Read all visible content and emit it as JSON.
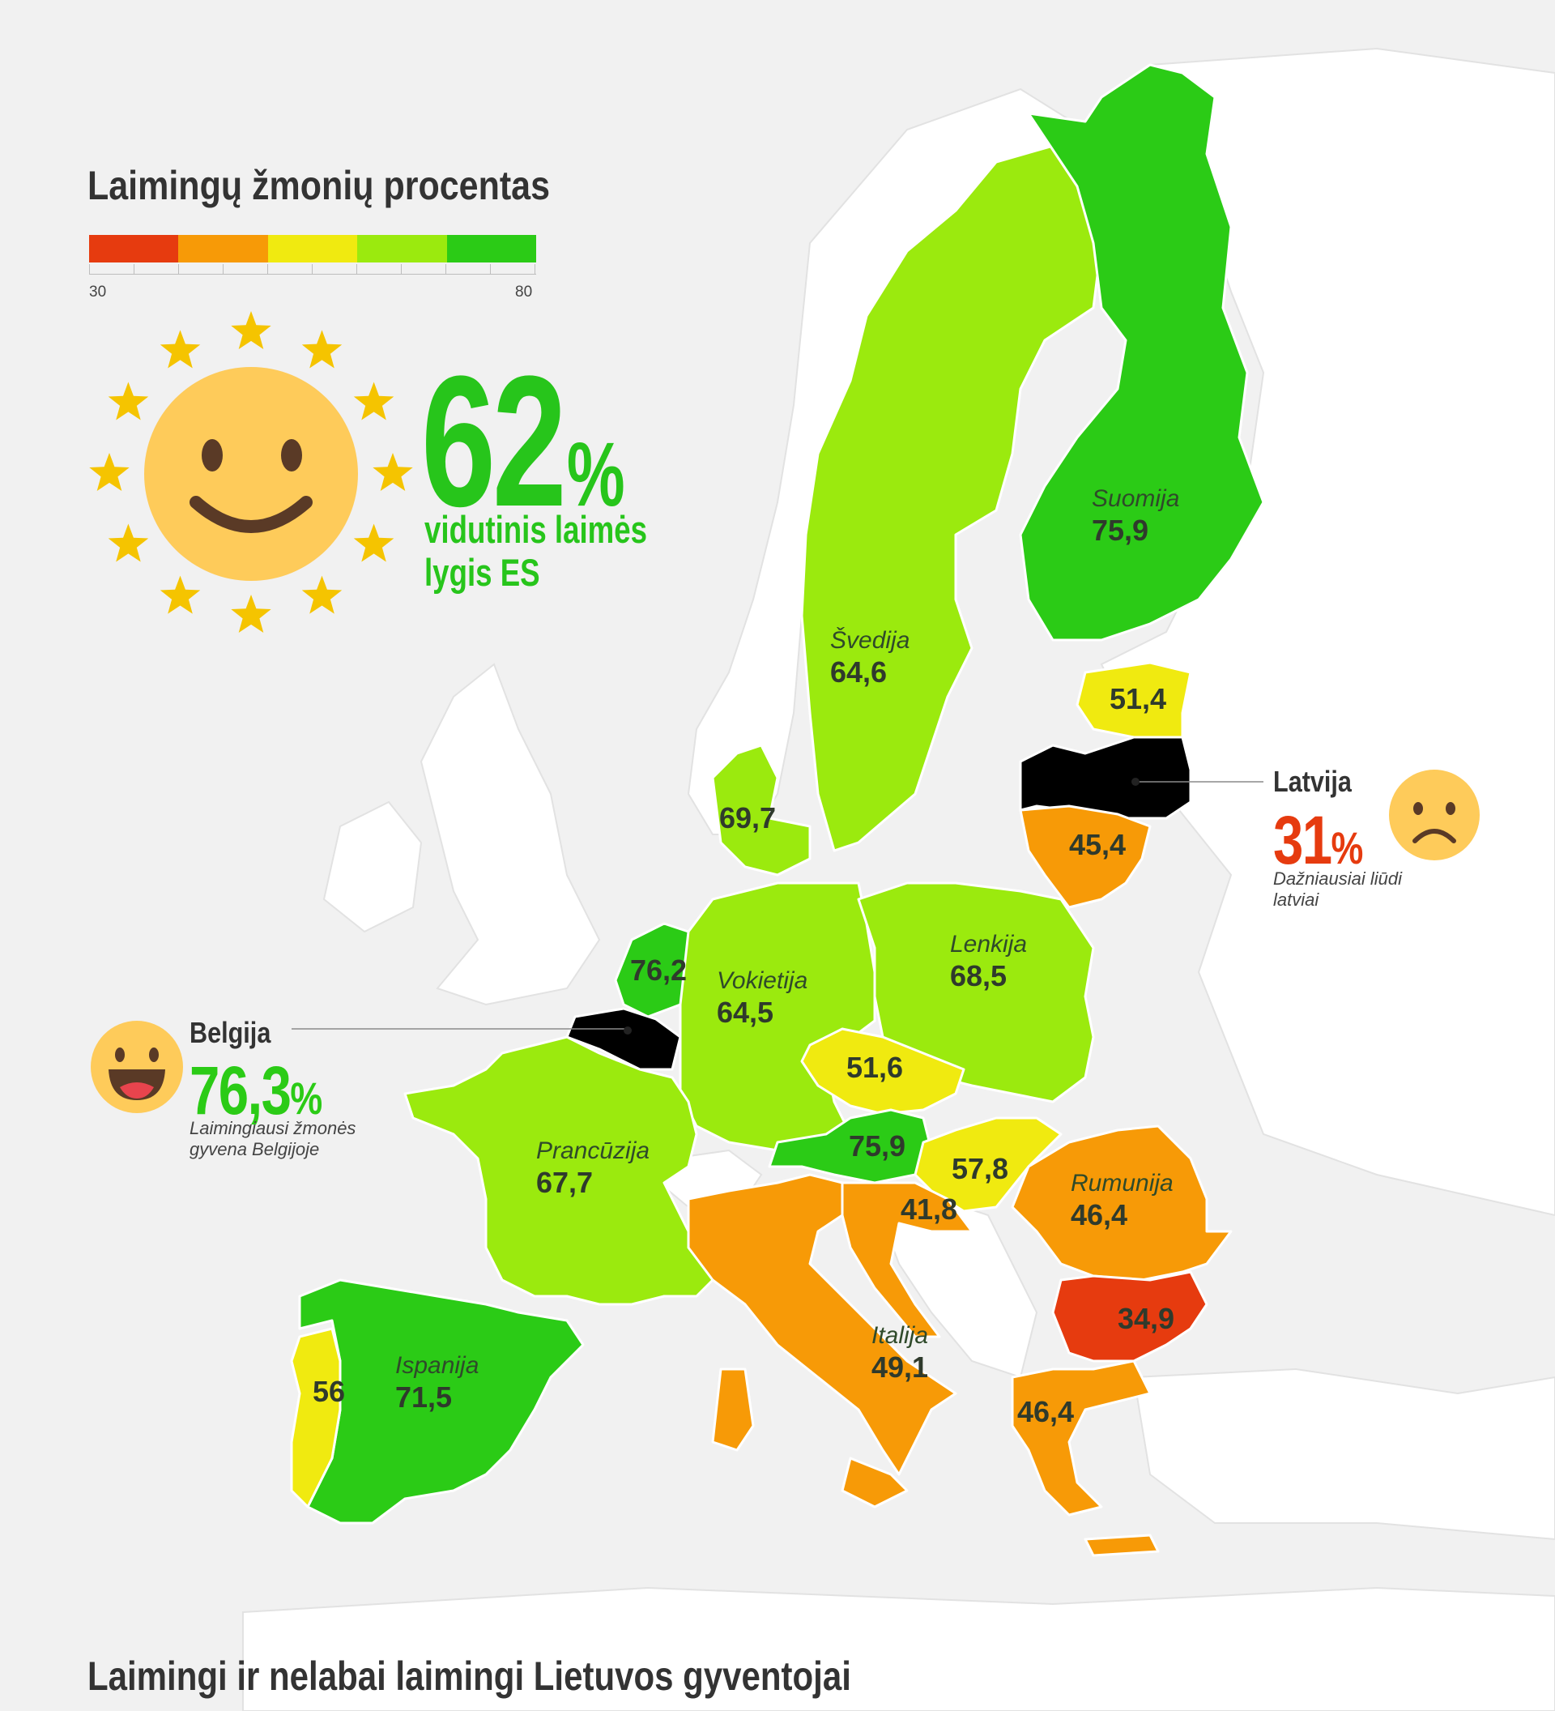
{
  "legend": {
    "title": "Laimingų žmonių procentas",
    "min": "30",
    "max": "80",
    "colors": [
      "#e63b0f",
      "#f79a07",
      "#f0ea10",
      "#9bea0e",
      "#2bcb16"
    ]
  },
  "eu_average": {
    "value": "62",
    "unit": "%",
    "label_line1": "vidutinis laimės",
    "label_line2": "lygis ES",
    "icon": "smiling-sun-icon"
  },
  "callouts": {
    "latvia": {
      "name": "Latvija",
      "value": "31",
      "unit": "%",
      "desc_line1": "Dažniausiai liūdi",
      "desc_line2": "latviai",
      "color": "#e63b0f",
      "icon": "sad-face-icon"
    },
    "belgium": {
      "name": "Belgija",
      "value": "76,3",
      "unit": "%",
      "desc_line1": "Laimingiausi žmonės",
      "desc_line2": "gyvena Belgijoje",
      "color": "#2bcb16",
      "icon": "laughing-face-icon"
    }
  },
  "countries": [
    {
      "name": "Suomija",
      "value": "75,9",
      "color": "#2bcb16"
    },
    {
      "name": "Švedija",
      "value": "64,6",
      "color": "#9bea0e"
    },
    {
      "name": "",
      "value": "51,4",
      "color": "#f0ea10"
    },
    {
      "name": "",
      "value": "45,4",
      "color": "#f79a07"
    },
    {
      "name": "",
      "value": "69,7",
      "color": "#9bea0e"
    },
    {
      "name": "",
      "value": "76,2",
      "color": "#2bcb16"
    },
    {
      "name": "Vokietija",
      "value": "64,5",
      "color": "#9bea0e"
    },
    {
      "name": "Lenkija",
      "value": "68,5",
      "color": "#9bea0e"
    },
    {
      "name": "",
      "value": "51,6",
      "color": "#f0ea10"
    },
    {
      "name": "",
      "value": "75,9",
      "color": "#2bcb16"
    },
    {
      "name": "",
      "value": "57,8",
      "color": "#f0ea10"
    },
    {
      "name": "Prancūzija",
      "value": "67,7",
      "color": "#9bea0e"
    },
    {
      "name": "",
      "value": "41,8",
      "color": "#f79a07"
    },
    {
      "name": "Rumunija",
      "value": "46,4",
      "color": "#f79a07"
    },
    {
      "name": "",
      "value": "34,9",
      "color": "#e63b0f"
    },
    {
      "name": "Italija",
      "value": "49,1",
      "color": "#f79a07"
    },
    {
      "name": "",
      "value": "46,4",
      "color": "#f79a07"
    },
    {
      "name": "Ispanija",
      "value": "71,5",
      "color": "#2bcb16"
    },
    {
      "name": "",
      "value": "56",
      "color": "#f0ea10"
    }
  ],
  "footer": {
    "title": "Laimingi ir nelabai laimingi Lietuvos gyventojai"
  }
}
